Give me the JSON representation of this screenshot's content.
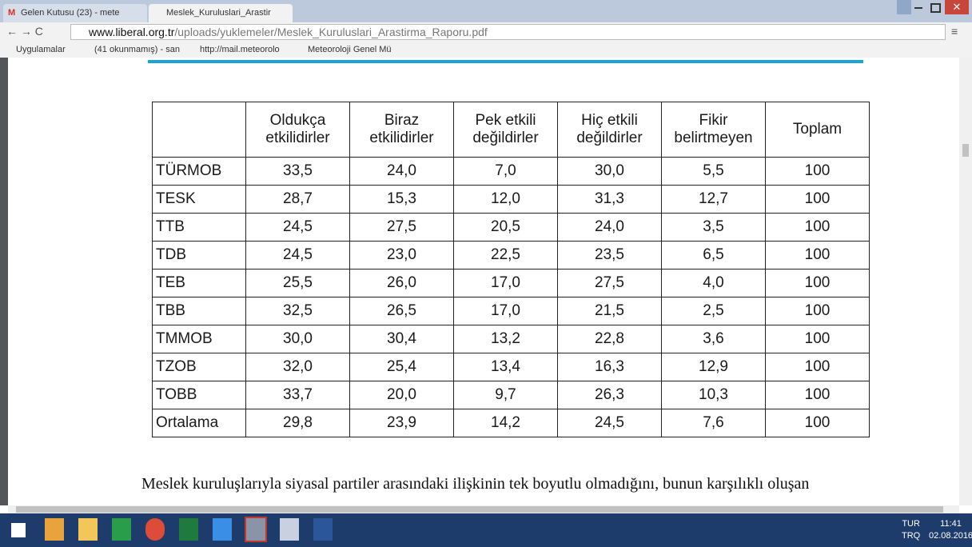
{
  "browser": {
    "tabs": [
      {
        "title": "Gelen Kutusu (23) - mete"
      },
      {
        "title": "Meslek_Kuruluslari_Arastir"
      }
    ],
    "url_host": "www.liberal.org.tr",
    "url_path": "/uploads/yuklemeler/Meslek_Kuruluslari_Arastirma_Raporu.pdf",
    "bookmarks": [
      "Uygulamalar",
      "(41 okunmamış) - san",
      "http://mail.meteorolo",
      "Meteoroloji Genel Mü"
    ]
  },
  "table": {
    "header": [
      "",
      "Oldukça etkilidirler",
      "Biraz etkilidirler",
      "Pek etkili değildirler",
      "Hiç etkili değildirler",
      "Fikir belirtmeyen",
      "Toplam"
    ],
    "rows": [
      [
        "TÜRMOB",
        "33,5",
        "24,0",
        "7,0",
        "30,0",
        "5,5",
        "100"
      ],
      [
        "TESK",
        "28,7",
        "15,3",
        "12,0",
        "31,3",
        "12,7",
        "100"
      ],
      [
        "TTB",
        "24,5",
        "27,5",
        "20,5",
        "24,0",
        "3,5",
        "100"
      ],
      [
        "TDB",
        "24,5",
        "23,0",
        "22,5",
        "23,5",
        "6,5",
        "100"
      ],
      [
        "TEB",
        "25,5",
        "26,0",
        "17,0",
        "27,5",
        "4,0",
        "100"
      ],
      [
        "TBB",
        "32,5",
        "26,5",
        "17,0",
        "21,5",
        "2,5",
        "100"
      ],
      [
        "TMMOB",
        "30,0",
        "30,4",
        "13,2",
        "22,8",
        "3,6",
        "100"
      ],
      [
        "TZOB",
        "32,0",
        "25,4",
        "13,4",
        "16,3",
        "12,9",
        "100"
      ],
      [
        "TOBB",
        "33,7",
        "20,0",
        "9,7",
        "26,3",
        "10,3",
        "100"
      ],
      [
        "Ortalama",
        "29,8",
        "23,9",
        "14,2",
        "24,5",
        "7,6",
        "100"
      ]
    ]
  },
  "paragraph": "Meslek kuruluşlarıyla siyasal partiler arasındaki ilişkinin tek boyutlu olmadığını, bunun karşılıklı oluşan",
  "taskbar": {
    "lang": "TUR",
    "layout": "TRQ",
    "time": "11:41",
    "date": "02.08.2016"
  }
}
